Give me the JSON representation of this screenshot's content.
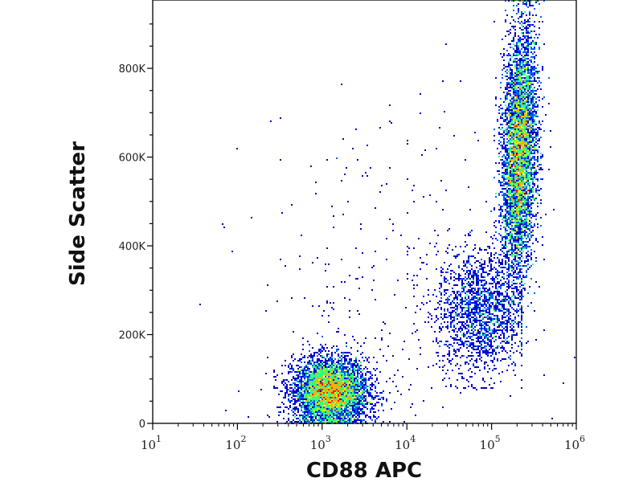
{
  "chart_data": {
    "type": "scatter",
    "subtype": "flow-cytometry-density-plot",
    "xlabel": "CD88 APC",
    "ylabel": "Side Scatter",
    "xscale": "log",
    "xlim": [
      10,
      1000000
    ],
    "ylim": [
      0,
      954000
    ],
    "x_ticks": [
      {
        "value": 10,
        "base": "10",
        "exp": "1"
      },
      {
        "value": 100,
        "base": "10",
        "exp": "2"
      },
      {
        "value": 1000,
        "base": "10",
        "exp": "3"
      },
      {
        "value": 10000,
        "base": "10",
        "exp": "4"
      },
      {
        "value": 100000,
        "base": "10",
        "exp": "5"
      },
      {
        "value": 1000000,
        "base": "10",
        "exp": "6"
      }
    ],
    "y_ticks": [
      {
        "value": 0,
        "label": "0"
      },
      {
        "value": 200000,
        "label": "200K"
      },
      {
        "value": 400000,
        "label": "400K"
      },
      {
        "value": 600000,
        "label": "600K"
      },
      {
        "value": 800000,
        "label": "800K"
      }
    ],
    "populations": [
      {
        "name": "CD88-negative cluster",
        "log10_x_mean": 3.1,
        "log10_x_sd": 0.22,
        "y_mean": 70000,
        "y_sd": 38000,
        "events": 5200
      },
      {
        "name": "CD88-positive granulocytes",
        "log10_x_mean": 5.33,
        "log10_x_sd": 0.1,
        "y_mean": 610000,
        "y_sd": 140000,
        "events": 6500
      },
      {
        "name": "intermediate bridge",
        "log10_x_mean": 4.85,
        "log10_x_sd": 0.25,
        "y_mean": 250000,
        "y_sd": 70000,
        "events": 1800
      },
      {
        "name": "sparse events",
        "log10_x_mean": 3.8,
        "log10_x_sd": 0.8,
        "y_mean": 300000,
        "y_sd": 200000,
        "events": 300
      }
    ],
    "grid": false,
    "colormap": [
      "#0000c8",
      "#0060ff",
      "#00d0ff",
      "#30ff80",
      "#d0ff00",
      "#ffb000",
      "#ff2000"
    ]
  }
}
